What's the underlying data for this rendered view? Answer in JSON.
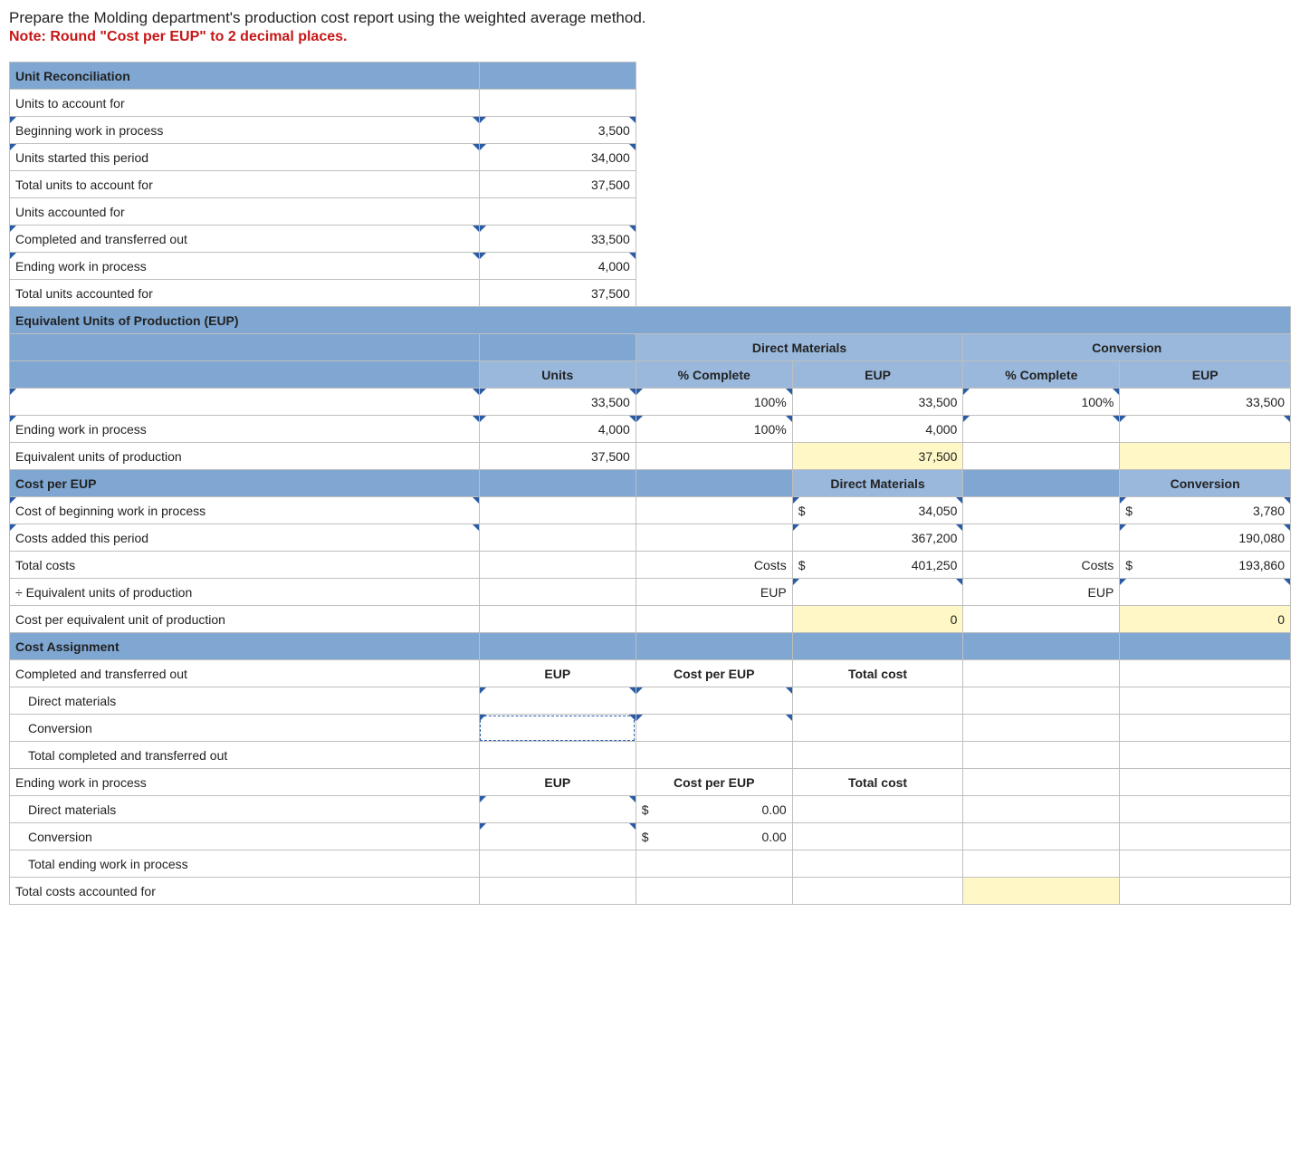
{
  "instruction": "Prepare the Molding department's production cost report using the weighted average method.",
  "note": "Note: Round \"Cost per EUP\" to 2 decimal places.",
  "sections": {
    "unit_recon": "Unit Reconciliation",
    "eup": "Equivalent Units of Production (EUP)",
    "cost_per_eup": "Cost per EUP",
    "cost_assign": "Cost Assignment"
  },
  "labels": {
    "units_to_account": "Units to account for",
    "beg_wip": "Beginning work in process",
    "units_started": "Units started this period",
    "total_to_account": "Total units to account for",
    "units_accounted": "Units accounted for",
    "completed_out": "Completed and transferred out",
    "end_wip": "Ending work in process",
    "total_accounted": "Total units accounted for",
    "dm": "Direct Materials",
    "conv": "Conversion",
    "units": "Units",
    "pct_complete": "% Complete",
    "eup_col": "EUP",
    "equiv_units": "Equivalent units of production",
    "cost_beg_wip": "Cost of beginning work in process",
    "costs_added": "Costs added this period",
    "total_costs": "Total costs",
    "div_eup": "÷ Equivalent units of production",
    "cost_per_equiv": "Cost per equivalent unit of production",
    "costs": "Costs",
    "cost_per_eup_col": "Cost per EUP",
    "total_cost": "Total cost",
    "direct_materials": "Direct materials",
    "conversion": "Conversion",
    "total_completed": "Total completed and transferred out",
    "total_end_wip": "Total ending work in process",
    "total_costs_acct": "Total costs accounted for"
  },
  "values": {
    "beg_wip": "3,500",
    "units_started": "34,000",
    "total_to_account": "37,500",
    "completed_out": "33,500",
    "end_wip": "4,000",
    "total_accounted": "37,500",
    "eup_row1_units": "33,500",
    "eup_row1_dm_pct": "100%",
    "eup_row1_dm_eup": "33,500",
    "eup_row1_cv_pct": "100%",
    "eup_row1_cv_eup": "33,500",
    "eup_row2_units": "4,000",
    "eup_row2_dm_pct": "100%",
    "eup_row2_dm_eup": "4,000",
    "eup_total_units": "37,500",
    "eup_total_dm": "37,500",
    "dm_beg": "34,050",
    "dm_added": "367,200",
    "dm_total": "401,250",
    "cv_beg": "3,780",
    "cv_added": "190,080",
    "cv_total": "193,860",
    "zero": "0",
    "zero_dec": "0.00",
    "dollar": "$"
  }
}
